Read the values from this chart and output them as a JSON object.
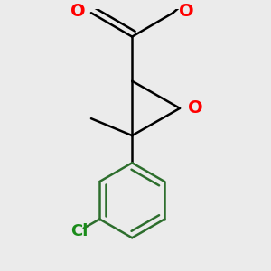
{
  "background_color": "#ebebeb",
  "bond_color_aromatic": "#2d6e2d",
  "bond_color_black": "#000000",
  "bond_width": 1.8,
  "atom_colors": {
    "O": "#ff0000",
    "Cl": "#1a8c1a",
    "C": "#000000"
  },
  "figsize": [
    3.0,
    3.0
  ],
  "dpi": 100,
  "xlim": [
    -1.2,
    1.2
  ],
  "ylim": [
    -2.2,
    1.6
  ]
}
